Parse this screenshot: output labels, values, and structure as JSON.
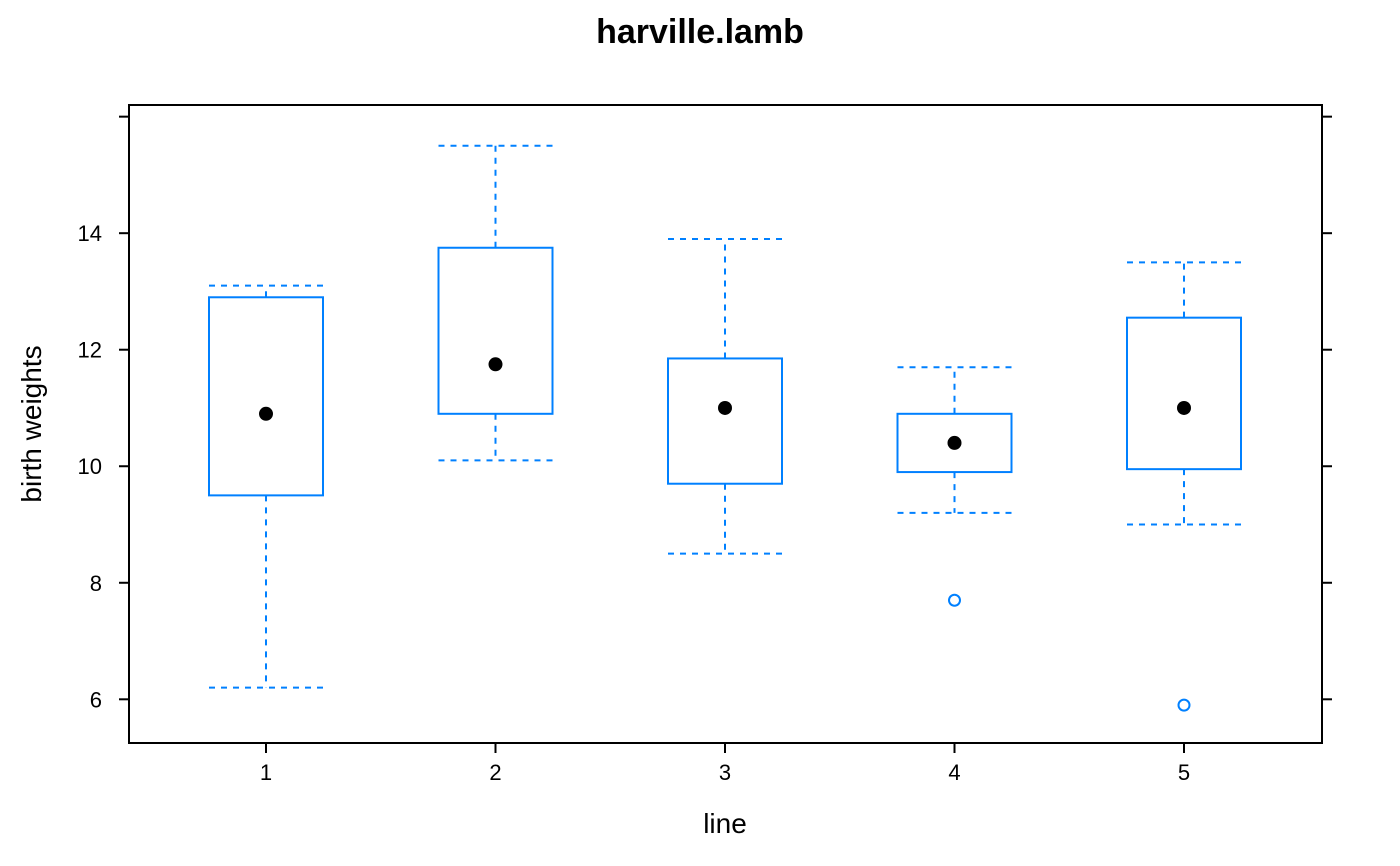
{
  "chart_data": {
    "type": "boxplot",
    "title": "harville.lamb",
    "xlabel": "line",
    "ylabel": "birth weights",
    "categories": [
      "1",
      "2",
      "3",
      "4",
      "5"
    ],
    "ylim": [
      5.25,
      16.2
    ],
    "yticks": [
      6,
      8,
      10,
      12,
      14
    ],
    "yticks_labels": [
      "6",
      "8",
      "10",
      "12",
      "14"
    ],
    "grid": false,
    "colors": {
      "box": "#0080ff",
      "median": "#000000",
      "outlier": "#0080ff",
      "frame": "#000000"
    },
    "boxes": [
      {
        "category": "1",
        "whisker_low": 6.2,
        "q1": 9.5,
        "median": 10.9,
        "q3": 12.9,
        "whisker_high": 13.1,
        "outliers": []
      },
      {
        "category": "2",
        "whisker_low": 10.1,
        "q1": 10.9,
        "median": 11.75,
        "q3": 13.75,
        "whisker_high": 15.5,
        "outliers": []
      },
      {
        "category": "3",
        "whisker_low": 8.5,
        "q1": 9.7,
        "median": 11.0,
        "q3": 11.85,
        "whisker_high": 13.9,
        "outliers": []
      },
      {
        "category": "4",
        "whisker_low": 9.2,
        "q1": 9.9,
        "median": 10.4,
        "q3": 10.9,
        "whisker_high": 11.7,
        "outliers": [
          7.7
        ]
      },
      {
        "category": "5",
        "whisker_low": 9.0,
        "q1": 9.95,
        "median": 11.0,
        "q3": 12.55,
        "whisker_high": 13.5,
        "outliers": [
          5.9
        ]
      }
    ]
  }
}
